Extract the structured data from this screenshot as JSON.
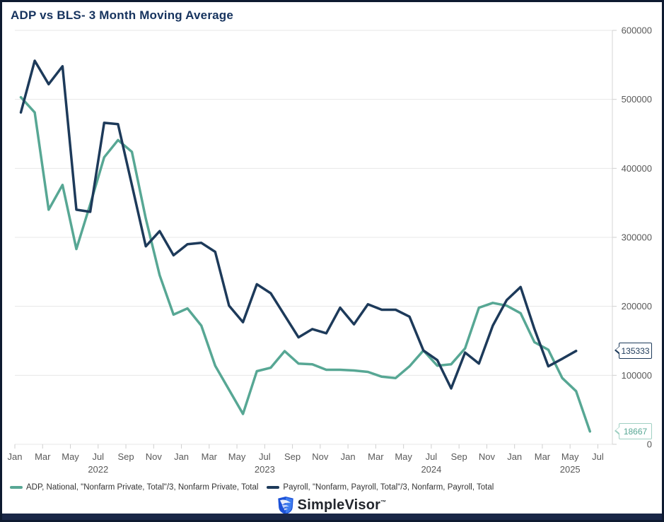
{
  "header": {
    "title": "ADP vs BLS- 3 Month Moving Average"
  },
  "chart_data": {
    "type": "line",
    "title": "ADP vs BLS- 3 Month Moving Average",
    "ylim": [
      0,
      600000
    ],
    "y_ticks": [
      0,
      100000,
      200000,
      300000,
      400000,
      500000,
      600000
    ],
    "grid": true,
    "legend_position": "bottom-left",
    "categories": [
      "Jan 2022",
      "Feb 2022",
      "Mar 2022",
      "Apr 2022",
      "May 2022",
      "Jun 2022",
      "Jul 2022",
      "Aug 2022",
      "Sep 2022",
      "Oct 2022",
      "Nov 2022",
      "Dec 2022",
      "Jan 2023",
      "Feb 2023",
      "Mar 2023",
      "Apr 2023",
      "May 2023",
      "Jun 2023",
      "Jul 2023",
      "Aug 2023",
      "Sep 2023",
      "Oct 2023",
      "Nov 2023",
      "Dec 2023",
      "Jan 2024",
      "Feb 2024",
      "Mar 2024",
      "Apr 2024",
      "May 2024",
      "Jun 2024",
      "Jul 2024",
      "Aug 2024",
      "Sep 2024",
      "Oct 2024",
      "Nov 2024",
      "Dec 2024",
      "Jan 2025",
      "Feb 2025",
      "Mar 2025",
      "Apr 2025",
      "May 2025",
      "Jun 2025"
    ],
    "x_tick_labels": [
      "Jan",
      "Mar",
      "May",
      "Jul",
      "Sep",
      "Nov",
      "Jan",
      "Mar",
      "May",
      "Jul",
      "Sep",
      "Nov",
      "Jan",
      "Mar",
      "May",
      "Jul",
      "Sep",
      "Nov",
      "Jan",
      "Mar",
      "May",
      "Jul"
    ],
    "year_labels": [
      {
        "label": "2022",
        "tick": 3
      },
      {
        "label": "2023",
        "tick": 9
      },
      {
        "label": "2024",
        "tick": 15
      },
      {
        "label": "2025",
        "tick": 20
      }
    ],
    "series": [
      {
        "name": "ADP, National, \"Nonfarm Private, Total\"/3, Nonfarm Private, Total",
        "color": "#57a794",
        "end_label": "18667",
        "values": [
          503000,
          481000,
          340000,
          376000,
          283000,
          348000,
          416000,
          441000,
          424000,
          327000,
          245000,
          188000,
          197000,
          172000,
          114000,
          79000,
          44000,
          106000,
          111000,
          135000,
          117000,
          116000,
          108000,
          108000,
          107000,
          105000,
          98000,
          96000,
          113000,
          136000,
          114000,
          116000,
          139000,
          198000,
          205000,
          201000,
          190000,
          148000,
          137000,
          96000,
          77000,
          18667
        ]
      },
      {
        "name": "Payroll, \"Nonfarm, Payroll, Total\"/3, Nonfarm, Payroll, Total",
        "color": "#1d3a5a",
        "end_label": "135333",
        "values": [
          481000,
          556000,
          522000,
          548000,
          340000,
          337000,
          466000,
          464000,
          376000,
          287000,
          309000,
          274000,
          290000,
          292000,
          279000,
          201000,
          177000,
          232000,
          219000,
          187000,
          155000,
          167000,
          161000,
          198000,
          174000,
          203000,
          195000,
          195000,
          185000,
          136000,
          122000,
          81000,
          133000,
          117000,
          172000,
          209000,
          228000,
          167000,
          113000,
          124000,
          135333
        ]
      }
    ]
  },
  "footer": {
    "brand": "SimpleVisor",
    "tm": "™"
  }
}
